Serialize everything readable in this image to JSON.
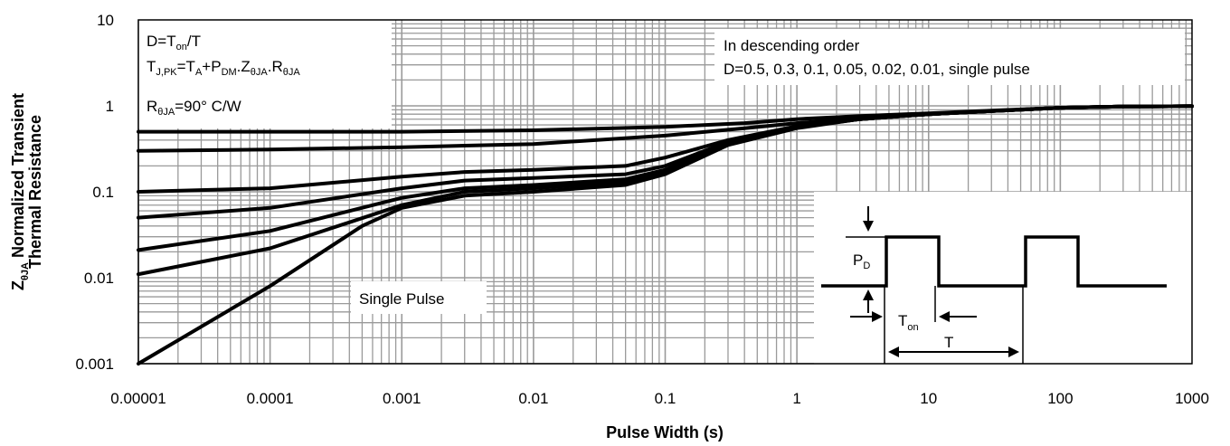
{
  "chart_data": {
    "type": "line",
    "title": "",
    "xlabel": "Pulse Width (s)",
    "ylabel_line1": "Normalized Transient",
    "ylabel_line2": "Thermal Resistance",
    "ylabel_symbol": "Z",
    "ylabel_symbol_sub": "θJA",
    "x_scale": "log",
    "y_scale": "log",
    "xlim": [
      1e-05,
      1000
    ],
    "ylim": [
      0.001,
      10
    ],
    "grid": true,
    "x_ticks": [
      "0.00001",
      "0.0001",
      "0.001",
      "0.01",
      "0.1",
      "1",
      "10",
      "100",
      "1000"
    ],
    "y_ticks": [
      "10",
      "1",
      "0.1",
      "0.01",
      "0.001"
    ],
    "series": [
      {
        "label": "0.5",
        "x": [
          1e-05,
          0.001,
          0.01,
          0.1,
          0.4,
          1,
          3,
          10,
          30,
          100,
          300,
          1000
        ],
        "y": [
          0.5,
          0.5,
          0.52,
          0.57,
          0.63,
          0.7,
          0.76,
          0.82,
          0.88,
          0.95,
          0.98,
          0.99
        ]
      },
      {
        "label": "0.3",
        "x": [
          1e-05,
          0.0001,
          0.001,
          0.01,
          0.1,
          0.4,
          1,
          3,
          10,
          30,
          100,
          300,
          1000
        ],
        "y": [
          0.3,
          0.31,
          0.33,
          0.36,
          0.45,
          0.55,
          0.63,
          0.72,
          0.8,
          0.87,
          0.95,
          0.98,
          0.99
        ]
      },
      {
        "label": "0.1",
        "x": [
          1e-05,
          0.0001,
          0.001,
          0.003,
          0.01,
          0.05,
          0.1,
          0.3,
          1,
          3,
          10,
          30,
          100,
          300,
          1000
        ],
        "y": [
          0.1,
          0.11,
          0.15,
          0.17,
          0.18,
          0.2,
          0.25,
          0.4,
          0.58,
          0.7,
          0.8,
          0.87,
          0.95,
          0.98,
          0.99
        ]
      },
      {
        "label": "0.05",
        "x": [
          1e-05,
          0.0001,
          0.001,
          0.003,
          0.01,
          0.05,
          0.1,
          0.3,
          1,
          3,
          10,
          30,
          100,
          300,
          1000
        ],
        "y": [
          0.05,
          0.065,
          0.11,
          0.135,
          0.145,
          0.16,
          0.2,
          0.38,
          0.57,
          0.7,
          0.8,
          0.87,
          0.95,
          0.98,
          0.99
        ]
      },
      {
        "label": "0.02",
        "x": [
          1e-05,
          0.0001,
          0.001,
          0.003,
          0.01,
          0.05,
          0.1,
          0.3,
          1,
          3,
          10,
          30,
          100,
          300,
          1000
        ],
        "y": [
          0.021,
          0.035,
          0.085,
          0.11,
          0.12,
          0.14,
          0.18,
          0.37,
          0.56,
          0.7,
          0.8,
          0.87,
          0.95,
          0.98,
          0.99
        ]
      },
      {
        "label": "0.01",
        "x": [
          1e-05,
          0.0001,
          0.001,
          0.003,
          0.01,
          0.05,
          0.1,
          0.3,
          1,
          3,
          10,
          30,
          100,
          300,
          1000
        ],
        "y": [
          0.011,
          0.022,
          0.07,
          0.1,
          0.11,
          0.13,
          0.17,
          0.36,
          0.56,
          0.7,
          0.8,
          0.87,
          0.95,
          0.98,
          0.99
        ]
      },
      {
        "label": "Single Pulse",
        "x": [
          1e-05,
          0.0001,
          0.0005,
          0.001,
          0.003,
          0.01,
          0.05,
          0.1,
          0.3,
          1,
          3,
          10,
          30,
          100,
          300,
          1000
        ],
        "y": [
          0.001,
          0.008,
          0.04,
          0.065,
          0.09,
          0.1,
          0.12,
          0.16,
          0.35,
          0.55,
          0.7,
          0.8,
          0.87,
          0.95,
          0.98,
          0.99
        ]
      }
    ],
    "annotations": {
      "d_def_main": "D=T",
      "d_def_sub": "on",
      "d_def_tail": "/T",
      "tj_a": "T",
      "tj_a_sub": "J,PK",
      "tj_b": "=T",
      "tj_b_sub": "A",
      "tj_c": "+P",
      "tj_c_sub": "DM",
      "tj_d": ".Z",
      "tj_d_sub": "θJA",
      "tj_e": ".R",
      "tj_e_sub": "θJA",
      "rth_a": "R",
      "rth_sub": "θJA",
      "rth_b": "=90° C/W",
      "order_line1": "In descending order",
      "order_line2": "D=0.5, 0.3, 0.1, 0.05, 0.02, 0.01, single pulse",
      "single_pulse": "Single Pulse",
      "pd_main": "P",
      "pd_sub": "D",
      "ton_main": "T",
      "ton_sub": "on",
      "period": "T"
    }
  }
}
